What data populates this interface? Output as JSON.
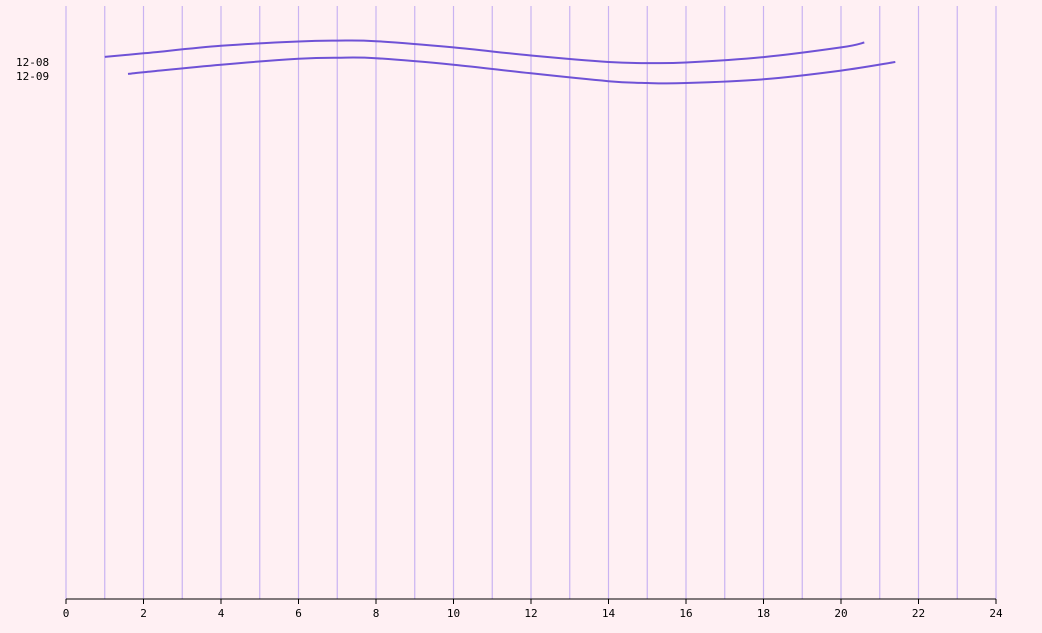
{
  "chart_data": {
    "type": "line",
    "title": "",
    "xlabel": "",
    "ylabel": "",
    "xlim": [
      0,
      24
    ],
    "x_ticks": [
      "0",
      "2",
      "4",
      "6",
      "8",
      "10",
      "12",
      "14",
      "16",
      "18",
      "20",
      "22",
      "24"
    ],
    "grid": "vertical, every 1 unit",
    "row_labels": [
      "12-08",
      "12-09"
    ],
    "series": [
      {
        "name": "12-08",
        "x": [
          1,
          2,
          4,
          6,
          7,
          8,
          10,
          12,
          14,
          15,
          16,
          18,
          20,
          20.6
        ],
        "y": [
          -0.55,
          -0.42,
          -0.14,
          0.02,
          0.05,
          0.03,
          -0.2,
          -0.5,
          -0.74,
          -0.78,
          -0.76,
          -0.56,
          -0.2,
          -0.02
        ]
      },
      {
        "name": "12-09",
        "x": [
          1.6,
          2,
          4,
          6,
          7,
          8,
          10,
          12,
          14,
          15,
          16,
          18,
          20,
          21.4
        ],
        "y": [
          -1.18,
          -1.12,
          -0.84,
          -0.62,
          -0.58,
          -0.6,
          -0.84,
          -1.16,
          -1.45,
          -1.52,
          -1.52,
          -1.38,
          -1.06,
          -0.74
        ]
      }
    ],
    "colors": {
      "background": "#fff0f3",
      "grid": "#c9b3f2",
      "line": "#6f52d6"
    }
  }
}
